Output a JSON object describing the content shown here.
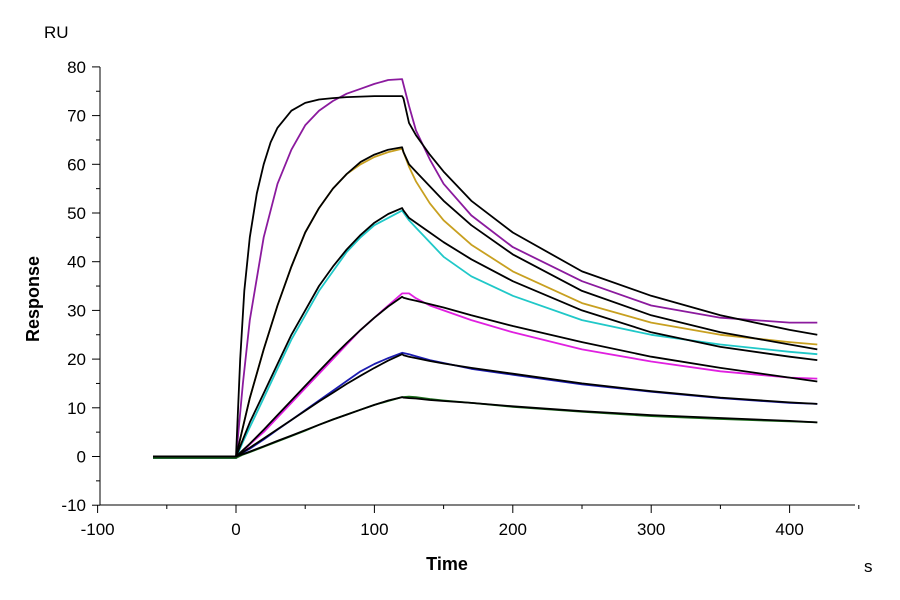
{
  "chart_data": {
    "type": "line",
    "title": "",
    "xlabel": "Time",
    "ylabel": "Response",
    "x_unit": "s",
    "y_unit": "RU",
    "xlim": [
      -100,
      450
    ],
    "ylim": [
      -10,
      80
    ],
    "x_ticks": [
      -100,
      0,
      100,
      200,
      300,
      400
    ],
    "y_ticks": [
      -10,
      0,
      10,
      20,
      30,
      40,
      50,
      60,
      70,
      80
    ],
    "grid": false,
    "legend": "none",
    "series": [
      {
        "color": "#8B1A9E",
        "role": "measured",
        "x": [
          -60,
          0,
          5,
          10,
          20,
          30,
          40,
          50,
          60,
          70,
          80,
          90,
          100,
          110,
          120,
          125,
          130,
          140,
          150,
          170,
          200,
          250,
          300,
          350,
          400,
          420
        ],
        "y": [
          -0.3,
          -0.3,
          15,
          28,
          45,
          56,
          63,
          68,
          71,
          73,
          74.5,
          75.5,
          76.5,
          77.3,
          77.5,
          72,
          67,
          61,
          56,
          49.5,
          43,
          36,
          31,
          28.5,
          27.5,
          27.5
        ]
      },
      {
        "color": "#C8A020",
        "role": "measured",
        "x": [
          -60,
          0,
          5,
          10,
          20,
          30,
          40,
          50,
          60,
          70,
          80,
          90,
          100,
          110,
          120,
          125,
          130,
          140,
          150,
          170,
          200,
          250,
          300,
          350,
          400,
          420
        ],
        "y": [
          -0.3,
          -0.3,
          6,
          12,
          22,
          31,
          39,
          46,
          51,
          55,
          58,
          60,
          61.5,
          62.5,
          63.2,
          59.5,
          56.5,
          52,
          48.5,
          43.5,
          38,
          31.5,
          27.5,
          25,
          23.5,
          23
        ]
      },
      {
        "color": "#20C8C8",
        "role": "measured",
        "x": [
          -60,
          0,
          5,
          10,
          20,
          30,
          40,
          50,
          60,
          70,
          80,
          90,
          100,
          110,
          120,
          125,
          130,
          140,
          150,
          170,
          200,
          250,
          300,
          350,
          400,
          420
        ],
        "y": [
          -0.3,
          -0.3,
          3,
          6,
          12,
          18,
          24,
          29,
          34,
          38,
          42,
          45,
          47.5,
          49,
          50.5,
          48.5,
          47,
          44,
          41,
          37,
          33,
          28,
          25,
          23,
          21.5,
          21
        ]
      },
      {
        "color": "#E020E0",
        "role": "measured",
        "x": [
          -60,
          0,
          5,
          10,
          20,
          30,
          40,
          50,
          60,
          70,
          80,
          90,
          100,
          110,
          120,
          125,
          130,
          140,
          150,
          170,
          200,
          250,
          300,
          350,
          400,
          420
        ],
        "y": [
          -0.3,
          -0.3,
          1,
          2.5,
          5,
          8,
          11,
          14,
          17,
          20,
          23,
          26,
          28.5,
          31,
          33.5,
          33.5,
          32.5,
          31,
          30,
          28,
          25.5,
          22,
          19.5,
          17.5,
          16.2,
          16
        ]
      },
      {
        "color": "#1C1CB0",
        "role": "measured",
        "x": [
          -60,
          0,
          5,
          10,
          20,
          30,
          40,
          50,
          60,
          70,
          80,
          90,
          100,
          110,
          120,
          125,
          130,
          140,
          150,
          170,
          200,
          250,
          300,
          350,
          400,
          420
        ],
        "y": [
          -0.3,
          -0.3,
          0.8,
          1.6,
          3.5,
          5.5,
          7.5,
          9.5,
          11.5,
          13.5,
          15.5,
          17.5,
          19,
          20.2,
          21.3,
          21,
          20.6,
          19.8,
          19.2,
          18,
          16.8,
          14.8,
          13.3,
          12,
          11,
          10.8
        ]
      },
      {
        "color": "#1A6B1A",
        "role": "measured",
        "x": [
          -60,
          0,
          5,
          10,
          20,
          30,
          40,
          50,
          60,
          70,
          80,
          90,
          100,
          110,
          120,
          125,
          130,
          140,
          150,
          170,
          200,
          250,
          300,
          350,
          400,
          420
        ],
        "y": [
          -0.3,
          -0.3,
          0.4,
          0.9,
          2,
          3.1,
          4.2,
          5.3,
          6.5,
          7.6,
          8.6,
          9.6,
          10.6,
          11.4,
          12.2,
          12.3,
          12.2,
          11.8,
          11.5,
          11,
          10.2,
          9.2,
          8.3,
          7.7,
          7.2,
          7
        ]
      },
      {
        "color": "#000000",
        "role": "fit",
        "x": [
          -60,
          0,
          3,
          6,
          10,
          15,
          20,
          25,
          30,
          40,
          50,
          60,
          70,
          80,
          90,
          100,
          110,
          120,
          121,
          125,
          130,
          140,
          150,
          170,
          200,
          250,
          300,
          350,
          400,
          420
        ],
        "y": [
          0,
          0,
          20,
          34,
          45,
          54,
          60,
          64.5,
          67.5,
          71,
          72.6,
          73.3,
          73.6,
          73.8,
          73.9,
          74,
          74,
          74,
          73.5,
          68.5,
          66,
          62,
          58.5,
          52.5,
          46,
          38,
          33,
          29,
          26,
          25
        ]
      },
      {
        "color": "#000000",
        "role": "fit",
        "x": [
          -60,
          0,
          5,
          10,
          20,
          30,
          40,
          50,
          60,
          70,
          80,
          90,
          100,
          110,
          120,
          121,
          125,
          130,
          140,
          150,
          170,
          200,
          250,
          300,
          350,
          400,
          420
        ],
        "y": [
          0,
          0,
          6,
          12,
          22,
          31,
          39,
          46,
          51,
          55,
          58,
          60.5,
          62,
          63,
          63.5,
          62.5,
          60,
          58.5,
          55.5,
          52.5,
          47.5,
          41.5,
          34,
          29,
          25.5,
          23,
          22
        ]
      },
      {
        "color": "#000000",
        "role": "fit",
        "x": [
          -60,
          0,
          5,
          10,
          20,
          30,
          40,
          50,
          60,
          70,
          80,
          90,
          100,
          110,
          120,
          121,
          125,
          130,
          140,
          150,
          170,
          200,
          250,
          300,
          350,
          400,
          420
        ],
        "y": [
          0,
          0,
          3.5,
          7,
          13,
          19,
          25,
          30,
          35,
          39,
          42.5,
          45.5,
          48,
          49.8,
          51,
          50.5,
          49,
          48,
          46,
          44,
          40.5,
          36,
          30,
          25.5,
          22.5,
          20.5,
          19.8
        ]
      },
      {
        "color": "#000000",
        "role": "fit",
        "x": [
          -60,
          0,
          5,
          10,
          20,
          30,
          40,
          50,
          60,
          70,
          80,
          90,
          100,
          110,
          120,
          121,
          125,
          130,
          140,
          150,
          170,
          200,
          250,
          300,
          350,
          400,
          420
        ],
        "y": [
          0,
          0,
          1.3,
          2.6,
          5.5,
          8.5,
          11.5,
          14.5,
          17.5,
          20.5,
          23.3,
          26,
          28.5,
          30.8,
          32.8,
          32.6,
          32.3,
          32,
          31.3,
          30.6,
          29,
          26.8,
          23.5,
          20.5,
          18.2,
          16.2,
          15.4
        ]
      },
      {
        "color": "#000000",
        "role": "fit",
        "x": [
          -60,
          0,
          5,
          10,
          20,
          30,
          40,
          50,
          60,
          70,
          80,
          90,
          100,
          110,
          120,
          121,
          125,
          130,
          140,
          150,
          170,
          200,
          250,
          300,
          350,
          400,
          420
        ],
        "y": [
          0,
          0,
          0.9,
          1.8,
          3.7,
          5.6,
          7.5,
          9.4,
          11.3,
          13.1,
          14.9,
          16.6,
          18.2,
          19.7,
          21,
          20.8,
          20.5,
          20.2,
          19.6,
          19.1,
          18.2,
          17,
          15,
          13.4,
          12.1,
          11.1,
          10.8
        ]
      },
      {
        "color": "#000000",
        "role": "fit",
        "x": [
          -60,
          0,
          5,
          10,
          20,
          30,
          40,
          50,
          60,
          70,
          80,
          90,
          100,
          110,
          120,
          121,
          125,
          130,
          140,
          150,
          170,
          200,
          250,
          300,
          350,
          400,
          420
        ],
        "y": [
          0,
          0,
          0.5,
          1,
          2.1,
          3.2,
          4.3,
          5.4,
          6.5,
          7.6,
          8.6,
          9.6,
          10.6,
          11.5,
          12.2,
          12.1,
          12,
          11.9,
          11.6,
          11.4,
          11,
          10.3,
          9.3,
          8.5,
          7.9,
          7.3,
          7
        ]
      }
    ]
  }
}
